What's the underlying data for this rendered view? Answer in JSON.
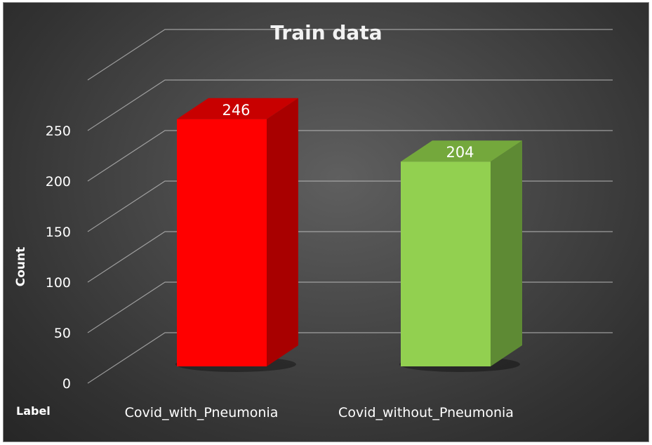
{
  "chart_data": {
    "type": "bar",
    "title": "Train data",
    "xlabel": "Label",
    "ylabel": "Count",
    "categories": [
      "Covid_with_Pneumonia",
      "Covid_without_Pneumonia"
    ],
    "values": [
      246,
      204
    ],
    "data_labels": [
      "246",
      "204"
    ],
    "y_ticks": [
      0,
      50,
      100,
      150,
      200,
      250
    ],
    "y_tick_labels": [
      "0",
      "50",
      "100",
      "150",
      "200",
      "250"
    ],
    "ylim": [
      0,
      300
    ],
    "grid": true,
    "style": "3d-column",
    "bar_colors": [
      {
        "front": "#ff0000",
        "side": "#a80000",
        "top": "#c80000"
      },
      {
        "front": "#92d050",
        "side": "#5e8a34",
        "top": "#74a83c"
      }
    ],
    "background_color": "#3d3d3d",
    "grid_color": "#bdbdbd",
    "text_color": "#ffffff"
  }
}
